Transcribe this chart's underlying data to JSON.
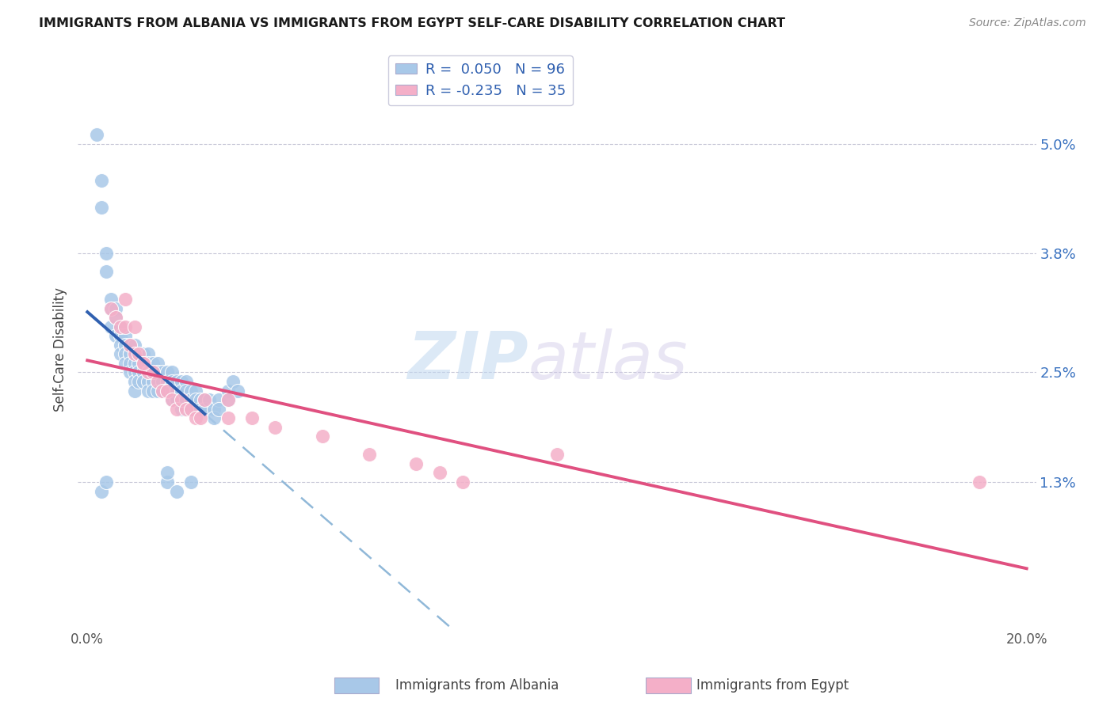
{
  "title": "IMMIGRANTS FROM ALBANIA VS IMMIGRANTS FROM EGYPT SELF-CARE DISABILITY CORRELATION CHART",
  "source": "Source: ZipAtlas.com",
  "ylabel": "Self-Care Disability",
  "watermark_zip": "ZIP",
  "watermark_atlas": "atlas",
  "albania_color": "#a8c8e8",
  "egypt_color": "#f4afc8",
  "albania_line_color": "#3060b0",
  "egypt_line_color": "#e05080",
  "albania_dash_color": "#90b8d8",
  "albania_R": 0.05,
  "albania_N": 96,
  "egypt_R": -0.235,
  "egypt_N": 35,
  "xlim": [
    0.0,
    0.2
  ],
  "ylim": [
    -0.003,
    0.058
  ],
  "ytick_vals": [
    0.013,
    0.025,
    0.038,
    0.05
  ],
  "ytick_labels": [
    "1.3%",
    "2.5%",
    "3.8%",
    "5.0%"
  ],
  "albania_x": [
    0.002,
    0.003,
    0.003,
    0.004,
    0.004,
    0.005,
    0.005,
    0.005,
    0.006,
    0.006,
    0.006,
    0.007,
    0.007,
    0.007,
    0.007,
    0.008,
    0.008,
    0.008,
    0.008,
    0.009,
    0.009,
    0.009,
    0.009,
    0.009,
    0.01,
    0.01,
    0.01,
    0.01,
    0.01,
    0.01,
    0.011,
    0.011,
    0.011,
    0.011,
    0.012,
    0.012,
    0.012,
    0.012,
    0.013,
    0.013,
    0.013,
    0.013,
    0.013,
    0.014,
    0.014,
    0.014,
    0.014,
    0.015,
    0.015,
    0.015,
    0.015,
    0.016,
    0.016,
    0.016,
    0.017,
    0.017,
    0.017,
    0.018,
    0.018,
    0.018,
    0.018,
    0.019,
    0.019,
    0.019,
    0.02,
    0.02,
    0.02,
    0.02,
    0.021,
    0.021,
    0.021,
    0.022,
    0.022,
    0.022,
    0.023,
    0.023,
    0.023,
    0.024,
    0.024,
    0.025,
    0.025,
    0.026,
    0.027,
    0.027,
    0.028,
    0.028,
    0.03,
    0.03,
    0.031,
    0.032,
    0.003,
    0.004,
    0.017,
    0.017,
    0.019,
    0.022
  ],
  "albania_y": [
    0.051,
    0.046,
    0.043,
    0.038,
    0.036,
    0.033,
    0.032,
    0.03,
    0.032,
    0.031,
    0.029,
    0.03,
    0.029,
    0.028,
    0.027,
    0.029,
    0.028,
    0.027,
    0.026,
    0.028,
    0.027,
    0.027,
    0.026,
    0.025,
    0.028,
    0.027,
    0.026,
    0.025,
    0.024,
    0.023,
    0.027,
    0.026,
    0.025,
    0.024,
    0.027,
    0.026,
    0.025,
    0.024,
    0.027,
    0.026,
    0.025,
    0.024,
    0.023,
    0.026,
    0.025,
    0.024,
    0.023,
    0.026,
    0.025,
    0.024,
    0.023,
    0.025,
    0.024,
    0.023,
    0.025,
    0.024,
    0.023,
    0.025,
    0.024,
    0.023,
    0.022,
    0.024,
    0.023,
    0.022,
    0.024,
    0.023,
    0.022,
    0.021,
    0.024,
    0.023,
    0.022,
    0.023,
    0.022,
    0.021,
    0.023,
    0.022,
    0.021,
    0.022,
    0.021,
    0.022,
    0.021,
    0.022,
    0.021,
    0.02,
    0.022,
    0.021,
    0.023,
    0.022,
    0.024,
    0.023,
    0.012,
    0.013,
    0.013,
    0.014,
    0.012,
    0.013
  ],
  "egypt_x": [
    0.005,
    0.006,
    0.007,
    0.008,
    0.009,
    0.01,
    0.011,
    0.012,
    0.013,
    0.014,
    0.015,
    0.016,
    0.017,
    0.018,
    0.019,
    0.02,
    0.021,
    0.022,
    0.023,
    0.024,
    0.025,
    0.03,
    0.03,
    0.035,
    0.04,
    0.05,
    0.06,
    0.07,
    0.075,
    0.08,
    0.008,
    0.01,
    0.012,
    0.19,
    0.1
  ],
  "egypt_y": [
    0.032,
    0.031,
    0.03,
    0.03,
    0.028,
    0.027,
    0.027,
    0.026,
    0.025,
    0.025,
    0.024,
    0.023,
    0.023,
    0.022,
    0.021,
    0.022,
    0.021,
    0.021,
    0.02,
    0.02,
    0.022,
    0.022,
    0.02,
    0.02,
    0.019,
    0.018,
    0.016,
    0.015,
    0.014,
    0.013,
    0.033,
    0.03,
    0.026,
    0.013,
    0.016
  ]
}
